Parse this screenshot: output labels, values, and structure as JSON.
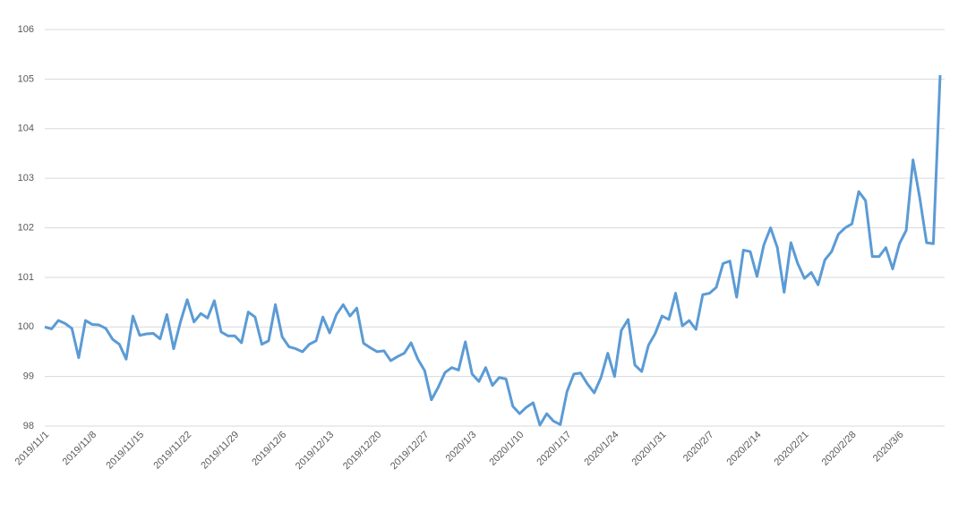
{
  "chart_data": {
    "type": "line",
    "categories": [
      "2019/11/1",
      null,
      null,
      null,
      null,
      null,
      null,
      "2019/11/8",
      null,
      null,
      null,
      null,
      null,
      null,
      "2019/11/15",
      null,
      null,
      null,
      null,
      null,
      null,
      "2019/11/22",
      null,
      null,
      null,
      null,
      null,
      null,
      "2019/11/29",
      null,
      null,
      null,
      null,
      null,
      null,
      "2019/12/6",
      null,
      null,
      null,
      null,
      null,
      null,
      "2019/12/13",
      null,
      null,
      null,
      null,
      null,
      null,
      "2019/12/20",
      null,
      null,
      null,
      null,
      null,
      null,
      "2019/12/27",
      null,
      null,
      null,
      null,
      null,
      null,
      "2020/1/3",
      null,
      null,
      null,
      null,
      null,
      null,
      "2020/1/10",
      null,
      null,
      null,
      null,
      null,
      null,
      "2020/1/17",
      null,
      null,
      null,
      null,
      null,
      null,
      "2020/1/24",
      null,
      null,
      null,
      null,
      null,
      null,
      "2020/1/31",
      null,
      null,
      null,
      null,
      null,
      null,
      "2020/2/7",
      null,
      null,
      null,
      null,
      null,
      null,
      "2020/2/14",
      null,
      null,
      null,
      null,
      null,
      null,
      "2020/2/21",
      null,
      null,
      null,
      null,
      null,
      null,
      "2020/2/28",
      null,
      null,
      null,
      null,
      null,
      null,
      "2020/3/6",
      null,
      null,
      null,
      null,
      null,
      null
    ],
    "series": [
      {
        "color": "#5b9bd5",
        "values": [
          100.0,
          99.96,
          100.13,
          100.07,
          99.97,
          99.38,
          100.13,
          100.05,
          100.04,
          99.97,
          99.75,
          99.65,
          99.35,
          100.22,
          99.83,
          99.86,
          99.87,
          99.76,
          100.25,
          99.56,
          100.1,
          100.55,
          100.1,
          100.27,
          100.18,
          100.53,
          99.9,
          99.82,
          99.82,
          99.68,
          100.3,
          100.2,
          99.65,
          99.72,
          100.45,
          99.8,
          99.6,
          99.56,
          99.5,
          99.65,
          99.72,
          100.2,
          99.88,
          100.25,
          100.45,
          100.22,
          100.38,
          99.67,
          99.58,
          99.5,
          99.52,
          99.32,
          99.4,
          99.47,
          99.68,
          99.35,
          99.12,
          98.53,
          98.78,
          99.08,
          99.18,
          99.13,
          99.7,
          99.05,
          98.9,
          99.18,
          98.82,
          98.98,
          98.95,
          98.4,
          98.25,
          98.38,
          98.47,
          98.02,
          98.25,
          98.1,
          98.03,
          98.7,
          99.05,
          99.07,
          98.85,
          98.67,
          98.98,
          99.47,
          99.0,
          99.93,
          100.15,
          99.23,
          99.1,
          99.63,
          99.87,
          100.22,
          100.15,
          100.68,
          100.02,
          100.13,
          99.95,
          100.65,
          100.68,
          100.8,
          101.28,
          101.33,
          100.6,
          101.55,
          101.52,
          101.02,
          101.65,
          102.0,
          101.6,
          100.7,
          101.7,
          101.28,
          100.98,
          101.1,
          100.85,
          101.35,
          101.52,
          101.87,
          102.0,
          102.08,
          102.73,
          102.55,
          101.42,
          101.42,
          101.6,
          101.17,
          101.68,
          101.95,
          103.37,
          102.6,
          101.7,
          101.68,
          105.08
        ]
      }
    ],
    "ylim": [
      98,
      106
    ],
    "yticks": [
      98,
      99,
      100,
      101,
      102,
      103,
      104,
      105,
      106
    ],
    "grid": true
  }
}
